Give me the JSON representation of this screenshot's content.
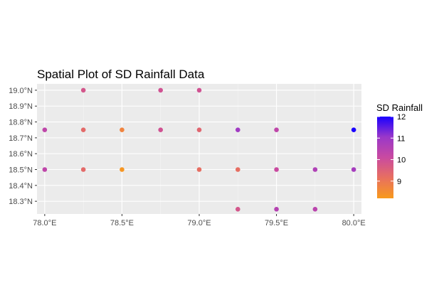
{
  "chart_data": {
    "type": "scatter",
    "title": "Spatial Plot of SD Rainfall Data",
    "xlabel": "",
    "ylabel": "",
    "xlim": [
      77.95,
      80.05
    ],
    "ylim": [
      18.22,
      19.04
    ],
    "x_ticks": [
      {
        "value": 78.0,
        "label": "78.0°E"
      },
      {
        "value": 78.5,
        "label": "78.5°E"
      },
      {
        "value": 79.0,
        "label": "79.0°E"
      },
      {
        "value": 79.5,
        "label": "79.5°E"
      },
      {
        "value": 80.0,
        "label": "80.0°E"
      }
    ],
    "y_ticks": [
      {
        "value": 18.3,
        "label": "18.3°N"
      },
      {
        "value": 18.4,
        "label": "18.4°N"
      },
      {
        "value": 18.5,
        "label": "18.5°N"
      },
      {
        "value": 18.6,
        "label": "18.6°N"
      },
      {
        "value": 18.7,
        "label": "18.7°N"
      },
      {
        "value": 18.8,
        "label": "18.8°N"
      },
      {
        "value": 18.9,
        "label": "18.9°N"
      },
      {
        "value": 19.0,
        "label": "19.0°N"
      }
    ],
    "grid": true,
    "legend": {
      "title": "SD Rainfall",
      "placement": "right",
      "range": [
        8.2,
        12.0
      ],
      "ticks": [
        {
          "value": 9,
          "label": "9"
        },
        {
          "value": 10,
          "label": "10"
        },
        {
          "value": 11,
          "label": "11"
        },
        {
          "value": 12,
          "label": "12"
        }
      ],
      "colors": [
        "#f89a1c",
        "#e8705f",
        "#c94aa0",
        "#9a38c9",
        "#1a00ff"
      ]
    },
    "points": [
      {
        "x": 78.25,
        "y": 19.0,
        "value": 9.8
      },
      {
        "x": 78.75,
        "y": 19.0,
        "value": 9.9
      },
      {
        "x": 79.0,
        "y": 19.0,
        "value": 9.9
      },
      {
        "x": 78.0,
        "y": 18.75,
        "value": 10.3
      },
      {
        "x": 78.25,
        "y": 18.75,
        "value": 9.3
      },
      {
        "x": 78.5,
        "y": 18.75,
        "value": 8.7
      },
      {
        "x": 78.75,
        "y": 18.75,
        "value": 9.9
      },
      {
        "x": 79.0,
        "y": 18.75,
        "value": 9.4
      },
      {
        "x": 79.25,
        "y": 18.75,
        "value": 10.9
      },
      {
        "x": 79.5,
        "y": 18.75,
        "value": 10.3
      },
      {
        "x": 80.0,
        "y": 18.75,
        "value": 12.0
      },
      {
        "x": 78.0,
        "y": 18.5,
        "value": 10.3
      },
      {
        "x": 78.25,
        "y": 18.5,
        "value": 9.3
      },
      {
        "x": 78.5,
        "y": 18.5,
        "value": 8.3
      },
      {
        "x": 79.0,
        "y": 18.5,
        "value": 9.2
      },
      {
        "x": 79.25,
        "y": 18.5,
        "value": 9.2
      },
      {
        "x": 79.5,
        "y": 18.5,
        "value": 10.1
      },
      {
        "x": 79.75,
        "y": 18.5,
        "value": 10.6
      },
      {
        "x": 80.0,
        "y": 18.5,
        "value": 10.8
      },
      {
        "x": 79.25,
        "y": 18.25,
        "value": 9.8
      },
      {
        "x": 79.5,
        "y": 18.25,
        "value": 10.5
      },
      {
        "x": 79.75,
        "y": 18.25,
        "value": 10.4
      }
    ]
  }
}
